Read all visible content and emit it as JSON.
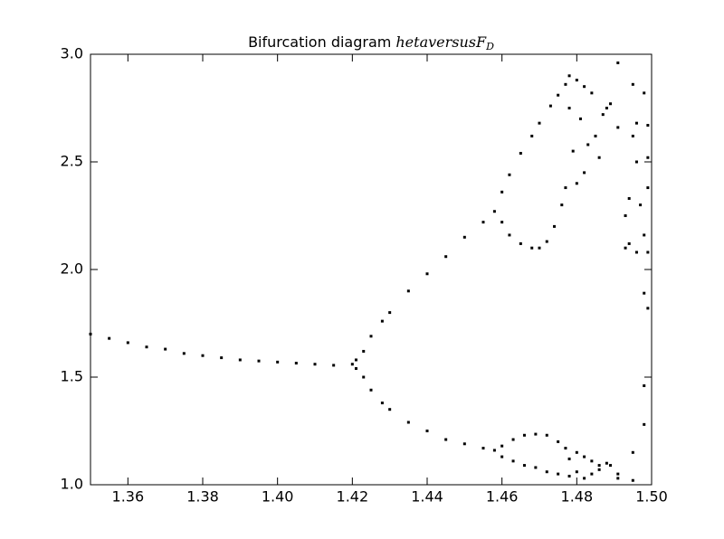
{
  "chart_data": {
    "type": "scatter",
    "title": "Bifurcation diagram",
    "title_math": "hetaversusF",
    "title_subscript": "D",
    "color": "#000000",
    "xlim": [
      1.35,
      1.5
    ],
    "ylim": [
      1.0,
      3.0
    ],
    "xticks": [
      1.36,
      1.38,
      {
        "value": 1.4,
        "label": "1.40"
      },
      1.42,
      1.44,
      1.46,
      1.48,
      {
        "value": 1.5,
        "label": "1.50"
      }
    ],
    "yticks": [
      {
        "value": 1.0,
        "label": "1.0"
      },
      1.5,
      {
        "value": 2.0,
        "label": "2.0"
      },
      2.5,
      {
        "value": 3.0,
        "label": "3.0"
      }
    ],
    "x": [
      1.35,
      1.355,
      1.36,
      1.365,
      1.37,
      1.375,
      1.38,
      1.385,
      1.39,
      1.395,
      1.4,
      1.405,
      1.41,
      1.415,
      1.42,
      1.421,
      1.423,
      1.425,
      1.428,
      1.43,
      1.435,
      1.44,
      1.445,
      1.45,
      1.455,
      1.458,
      1.46,
      1.462,
      1.465,
      1.468,
      1.47,
      1.473,
      1.475,
      1.477,
      1.46,
      1.462,
      1.465,
      1.468,
      1.47,
      1.472,
      1.474,
      1.476,
      1.477,
      1.421,
      1.423,
      1.425,
      1.428,
      1.43,
      1.435,
      1.44,
      1.445,
      1.45,
      1.455,
      1.458,
      1.46,
      1.463,
      1.466,
      1.469,
      1.472,
      1.475,
      1.477,
      1.46,
      1.463,
      1.466,
      1.469,
      1.472,
      1.475,
      1.478,
      1.478,
      1.479,
      1.48,
      1.48,
      1.481,
      1.482,
      1.482,
      1.483,
      1.484,
      1.485,
      1.486,
      1.487,
      1.488,
      1.489,
      1.478,
      1.478,
      1.48,
      1.48,
      1.482,
      1.482,
      1.484,
      1.484,
      1.486,
      1.486,
      1.488,
      1.489,
      1.491,
      1.491,
      1.491,
      1.491,
      1.493,
      1.493,
      1.494,
      1.494,
      1.495,
      1.495,
      1.495,
      1.495,
      1.496,
      1.496,
      1.496,
      1.497,
      1.498,
      1.498,
      1.498,
      1.498,
      1.498,
      1.499,
      1.499,
      1.499,
      1.499,
      1.499
    ],
    "y": [
      1.7,
      1.68,
      1.66,
      1.64,
      1.63,
      1.61,
      1.6,
      1.59,
      1.58,
      1.575,
      1.57,
      1.565,
      1.56,
      1.555,
      1.56,
      1.58,
      1.62,
      1.69,
      1.76,
      1.8,
      1.9,
      1.98,
      2.06,
      2.15,
      2.22,
      2.27,
      2.36,
      2.44,
      2.54,
      2.62,
      2.68,
      2.76,
      2.81,
      2.86,
      2.22,
      2.16,
      2.12,
      2.1,
      2.1,
      2.13,
      2.2,
      2.3,
      2.38,
      1.54,
      1.5,
      1.44,
      1.38,
      1.35,
      1.29,
      1.25,
      1.21,
      1.19,
      1.17,
      1.16,
      1.18,
      1.21,
      1.23,
      1.235,
      1.23,
      1.2,
      1.17,
      1.13,
      1.11,
      1.09,
      1.08,
      1.06,
      1.05,
      2.9,
      2.75,
      2.55,
      2.88,
      2.4,
      2.7,
      2.45,
      2.85,
      2.58,
      2.82,
      2.62,
      2.52,
      2.72,
      2.75,
      2.77,
      1.12,
      1.04,
      1.15,
      1.06,
      1.13,
      1.03,
      1.11,
      1.05,
      1.09,
      1.07,
      1.1,
      1.09,
      2.96,
      2.66,
      1.05,
      1.03,
      2.25,
      2.1,
      2.33,
      2.12,
      2.86,
      2.62,
      1.15,
      1.02,
      2.5,
      2.68,
      2.08,
      2.3,
      2.82,
      1.89,
      1.46,
      1.28,
      2.16,
      2.67,
      2.52,
      2.38,
      2.08,
      1.82
    ]
  }
}
